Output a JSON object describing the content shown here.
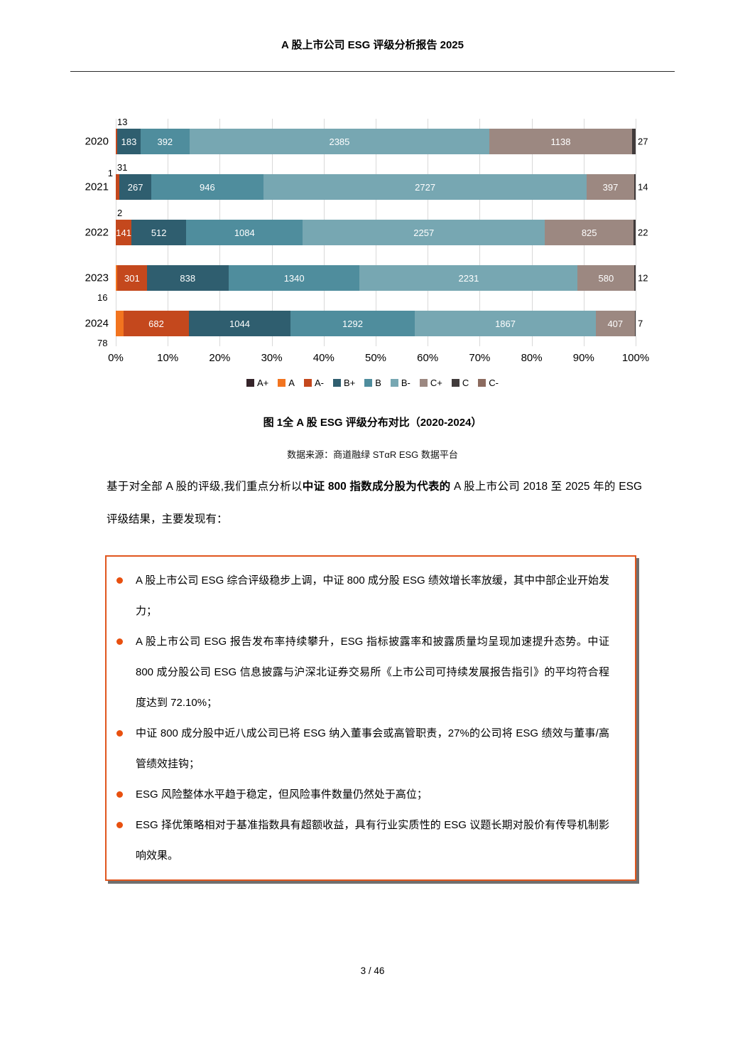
{
  "page": {
    "header_title": "A 股上市公司 ESG 评级分析报告 2025",
    "footer_page_number": "3 / 46"
  },
  "figure": {
    "caption": "图 1全 A 股 ESG 评级分布对比（2020-2024）",
    "source": "数据来源：商道融绿 STαR ESG 数据平台"
  },
  "intro": {
    "segments": [
      {
        "text": "基于对全部 A 股的评级,我们重点分析以",
        "bold": false
      },
      {
        "text": "中证 800 指数成分股为代表的",
        "bold": true
      },
      {
        "text": " A 股上市公司 2018 至 2025 年的 ESG 评级结果，主要发现有：",
        "bold": false
      }
    ]
  },
  "key_findings": [
    "A 股上市公司 ESG 综合评级稳步上调，中证 800 成分股 ESG 绩效增长率放缓，其中中部企业开始发力；",
    "A 股上市公司 ESG 报告发布率持续攀升，ESG 指标披露率和披露质量均呈现加速提升态势。中证 800 成分股公司 ESG 信息披露与沪深北证券交易所《上市公司可持续发展报告指引》的平均符合程度达到 72.10%；",
    "中证 800 成分股中近八成公司已将 ESG 纳入董事会或高管职责，27%的公司将 ESG 绩效与董事/高管绩效挂钩；",
    "ESG 风险整体水平趋于稳定，但风险事件数量仍然处于高位；",
    "ESG 择优策略相对于基准指数具有超额收益，具有行业实质性的 ESG 议题长期对股价有传导机制影响效果。"
  ],
  "chart_data": {
    "type": "bar",
    "variant": "horizontal-stacked-100-percent",
    "title": "",
    "categories": [
      "2020",
      "2021",
      "2022",
      "2023",
      "2024"
    ],
    "series": [
      {
        "name": "A+",
        "color": "#35242a",
        "values": [
          0,
          0,
          0,
          0,
          0
        ]
      },
      {
        "name": "A",
        "color": "#f2741f",
        "values": [
          0,
          1,
          2,
          16,
          78
        ]
      },
      {
        "name": "A-",
        "color": "#c4481d",
        "values": [
          13,
          31,
          141,
          301,
          682
        ]
      },
      {
        "name": "B+",
        "color": "#2f5e6f",
        "values": [
          183,
          267,
          512,
          838,
          1044
        ]
      },
      {
        "name": "B",
        "color": "#4f8d9d",
        "values": [
          392,
          946,
          1084,
          1340,
          1292
        ]
      },
      {
        "name": "B-",
        "color": "#77a7b2",
        "values": [
          2385,
          2727,
          2257,
          2231,
          1867
        ]
      },
      {
        "name": "C+",
        "color": "#9c8881",
        "values": [
          1138,
          397,
          825,
          580,
          407
        ]
      },
      {
        "name": "C",
        "color": "#413b3b",
        "values": [
          27,
          14,
          22,
          12,
          7
        ]
      },
      {
        "name": "C-",
        "color": "#8c6b5f",
        "values": [
          0,
          0,
          0,
          0,
          0
        ]
      }
    ],
    "x_ticks": [
      "0%",
      "10%",
      "20%",
      "30%",
      "40%",
      "50%",
      "60%",
      "70%",
      "80%",
      "90%",
      "100%"
    ],
    "grid": true,
    "legend_position": "bottom",
    "min_inside_label_pct": 2.5,
    "callout_labels": [
      {
        "row": 0,
        "text": "13",
        "placement": "above-start"
      },
      {
        "row": 1,
        "text": "31",
        "placement": "above-start"
      },
      {
        "row": 1,
        "text": "1",
        "placement": "left-of-bar"
      },
      {
        "row": 2,
        "text": "2",
        "placement": "above-start"
      },
      {
        "row": 3,
        "text": "16",
        "placement": "below-start"
      },
      {
        "row": 4,
        "text": "78",
        "placement": "below-start"
      }
    ],
    "end_labels": [
      "27",
      "14",
      "22",
      "12",
      "7"
    ]
  },
  "style_colors": {
    "box_border": "#e0561e",
    "bullet_dot": "#e8500f",
    "gridline": "#d9d9d9"
  }
}
